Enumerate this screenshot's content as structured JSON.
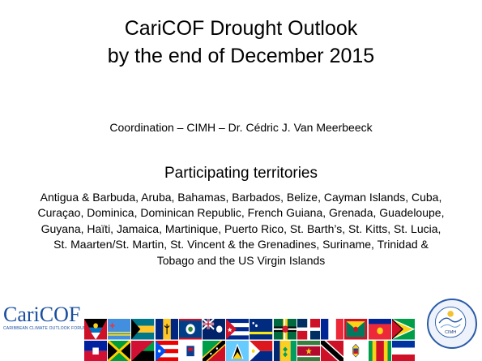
{
  "slide": {
    "title_line1": "CariCOF Drought Outlook",
    "title_line2": "by the end of December 2015",
    "coordination": "Coordination – CIMH – Dr. Cédric J. Van Meerbeeck",
    "participating_heading": "Participating territories",
    "territories_text": "Antigua & Barbuda, Aruba, Bahamas, Barbados, Belize, Cayman Islands, Cuba, Curaçao, Dominica, Dominican Republic, French Guiana, Grenada, Guadeloupe, Guyana, Haïti, Jamaica, Martinique, Puerto Rico, St. Barth’s, St. Kitts, St. Lucia, St. Maarten/St. Martin, St. Vincent & the Grenadines, Suriname, Trinidad & Tobago and the US Virgin Islands"
  },
  "logos": {
    "caricof_name": "CariCOF",
    "caricof_tagline": "CARIBBEAN CLIMATE OUTLOOK FORUM",
    "cimh_label": "CIMH"
  },
  "flags": [
    "antigua-barbuda",
    "aruba",
    "bahamas",
    "barbados",
    "belize",
    "cayman-islands",
    "cuba",
    "curacao",
    "dominica",
    "dominican-republic",
    "french-guiana",
    "grenada",
    "guadeloupe",
    "guyana",
    "haiti",
    "jamaica",
    "martinique",
    "puerto-rico",
    "st-barths",
    "st-kitts",
    "st-lucia",
    "st-maarten",
    "st-vincent",
    "suriname",
    "trinidad-tobago",
    "us-virgin-islands",
    "grenada-2",
    "guyana-2"
  ],
  "colors": {
    "logo_blue": "#1a4fa0",
    "text": "#000000",
    "background": "#ffffff"
  }
}
